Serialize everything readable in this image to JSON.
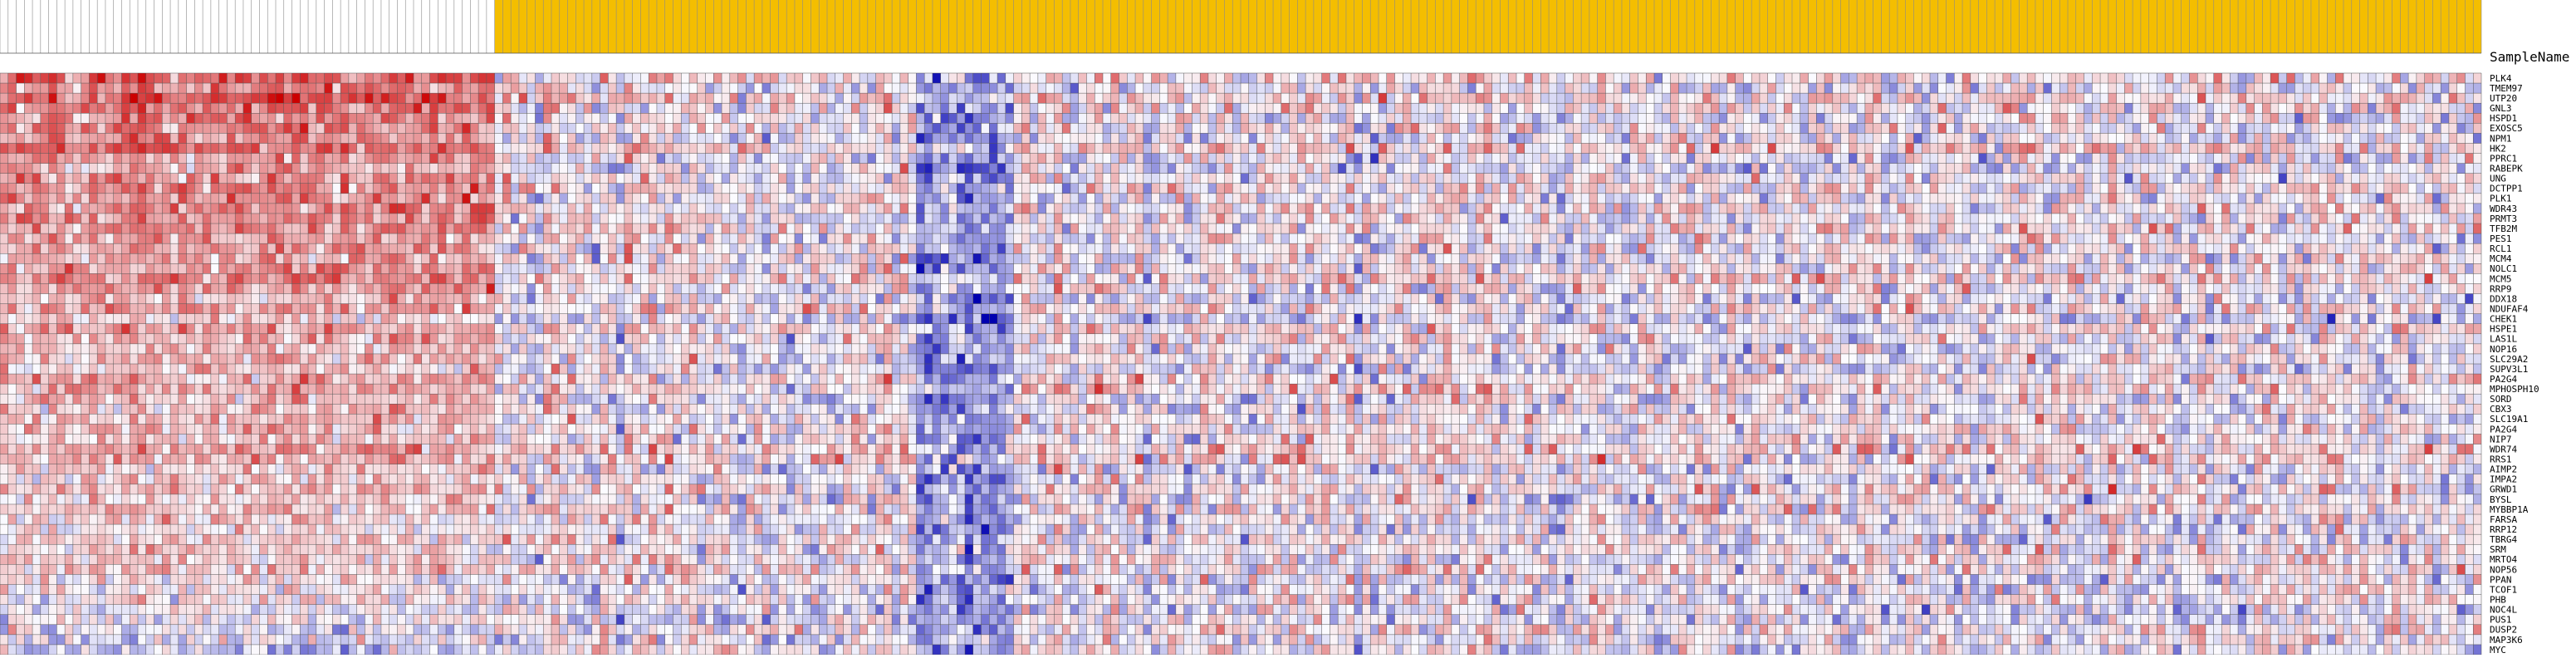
{
  "chart_data": {
    "type": "heatmap",
    "column_header_label": "SampleName",
    "groups": [
      {
        "count": 61,
        "color": "#ffffff"
      },
      {
        "count": 245,
        "color": "#f4be00"
      }
    ],
    "row_labels": [
      "PLK4",
      "TMEM97",
      "UTP20",
      "GNL3",
      "HSPD1",
      "EXOSC5",
      "NPM1",
      "HK2",
      "PPRC1",
      "RABEPK",
      "UNG",
      "DCTPP1",
      "PLK1",
      "WDR43",
      "PRMT3",
      "TFB2M",
      "PES1",
      "RCL1",
      "MCM4",
      "NOLC1",
      "MCM5",
      "RRP9",
      "DDX18",
      "NDUFAF4",
      "CHEK1",
      "HSPE1",
      "LAS1L",
      "NOP16",
      "SLC29A2",
      "SUPV3L1",
      "PA2G4",
      "MPHOSPH10",
      "SORD",
      "CBX3",
      "SLC19A1",
      "PA2G4",
      "NIP7",
      "WDR74",
      "RRS1",
      "AIMP2",
      "IMPA2",
      "GRWD1",
      "BYSL",
      "MYBBP1A",
      "FARSA",
      "RRP12",
      "TBRG4",
      "SRM",
      "MRTO4",
      "NOP56",
      "PPAN",
      "TCOF1",
      "PHB",
      "NOC4L",
      "PUS1",
      "DUSP2",
      "MAP3K6",
      "MYC"
    ],
    "column_count": 306,
    "color_scale": {
      "high": "#cc0000",
      "mid": "#fbfbff",
      "low": "#0000b0",
      "labels_shown": false
    },
    "legend": "none",
    "grid": true
  }
}
